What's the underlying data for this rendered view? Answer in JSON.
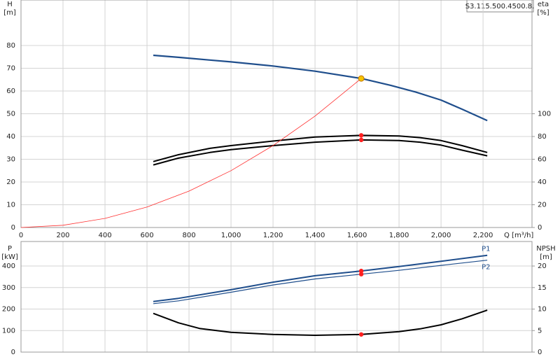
{
  "chart_data": [
    {
      "type": "line",
      "title": "S3.115.500.4500.8.",
      "ylabel": "H",
      "yunit": "[m]",
      "y2label": "eta",
      "y2unit": "[%]",
      "xlabel": "Q [m³/h]",
      "xlim": [
        0,
        2433
      ],
      "xticks": [
        0,
        200,
        400,
        600,
        800,
        {
          "value": 1000,
          "label": "1,000"
        },
        {
          "value": 1200,
          "label": "1,200"
        },
        {
          "value": 1400,
          "label": "1,400"
        },
        {
          "value": 1600,
          "label": "1,600"
        },
        {
          "value": 1800,
          "label": "1,800"
        },
        {
          "value": 2000,
          "label": "2,000"
        },
        {
          "value": 2200,
          "label": "2,200"
        }
      ],
      "ylim": [
        0,
        100
      ],
      "yticks": [
        0,
        10,
        20,
        30,
        40,
        50,
        60,
        70,
        80
      ],
      "y2lim": [
        0,
        200
      ],
      "y2ticks": [
        0,
        20,
        40,
        60,
        80,
        100
      ],
      "grid": true,
      "series": [
        {
          "color": "#1f4e8c",
          "width": 2.2,
          "x": [
            630,
            750,
            900,
            1000,
            1200,
            1400,
            1620,
            1760,
            1880,
            2000,
            2100,
            2220
          ],
          "values": [
            75.7,
            74.8,
            73.6,
            72.8,
            71,
            68.7,
            65.5,
            62.5,
            59.5,
            56,
            52,
            47
          ]
        },
        {
          "color": "#000000",
          "width": 2,
          "axis": "y2",
          "x": [
            630,
            750,
            900,
            1000,
            1200,
            1400,
            1620,
            1800,
            1900,
            2000,
            2100,
            2220
          ],
          "values": [
            58,
            64,
            69.6,
            72,
            76,
            79.6,
            81,
            80.4,
            79,
            76.4,
            72,
            66
          ]
        },
        {
          "color": "#000000",
          "width": 2,
          "axis": "y2",
          "x": [
            630,
            750,
            900,
            1000,
            1200,
            1400,
            1620,
            1800,
            1900,
            2000,
            2100,
            2220
          ],
          "values": [
            55,
            61,
            66,
            68.4,
            72,
            75,
            77,
            76.4,
            75,
            72.4,
            68,
            63
          ]
        },
        {
          "color": "#ff3030",
          "width": 0.8,
          "x": [
            0,
            200,
            400,
            600,
            800,
            1000,
            1200,
            1400,
            1620
          ],
          "values": [
            0,
            1,
            4,
            9,
            16,
            25,
            36,
            49,
            65.5
          ]
        }
      ],
      "markers": [
        {
          "x": 1620,
          "y": 65.5,
          "color": "#f5c400"
        },
        {
          "x": 1620,
          "y": 81,
          "axis": "y2",
          "color": "#ff2020"
        },
        {
          "x": 1620,
          "y": 77,
          "axis": "y2",
          "color": "#ff2020"
        }
      ]
    },
    {
      "type": "line",
      "ylabel": "P",
      "yunit": "[kW]",
      "y2label": "NPSH",
      "y2unit": "[m]",
      "ylim": [
        0,
        514
      ],
      "yticks": [
        0,
        100,
        200,
        300,
        400
      ],
      "y2lim": [
        0,
        25.7
      ],
      "y2ticks": [
        0,
        5,
        10,
        15,
        20
      ],
      "grid": true,
      "series": [
        {
          "name": "P1",
          "color": "#1f4e8c",
          "width": 2,
          "x": [
            630,
            750,
            1000,
            1200,
            1400,
            1620,
            1800,
            2000,
            2220
          ],
          "values": [
            235,
            250,
            290,
            325,
            355,
            377,
            398,
            422,
            450
          ]
        },
        {
          "name": "P2",
          "color": "#1f4e8c",
          "width": 1.2,
          "x": [
            630,
            750,
            1000,
            1200,
            1400,
            1620,
            1800,
            2000,
            2220
          ],
          "values": [
            225,
            238,
            278,
            312,
            340,
            362,
            380,
            403,
            427
          ]
        },
        {
          "color": "#000000",
          "width": 2,
          "axis": "y2",
          "x": [
            630,
            750,
            850,
            1000,
            1200,
            1400,
            1620,
            1800,
            1900,
            2000,
            2100,
            2220
          ],
          "values": [
            9,
            6.8,
            5.5,
            4.6,
            4.1,
            3.9,
            4.1,
            4.75,
            5.4,
            6.35,
            7.75,
            9.75
          ]
        }
      ],
      "markers": [
        {
          "x": 1620,
          "y": 377,
          "color": "#ff2020"
        },
        {
          "x": 1620,
          "y": 362,
          "color": "#ff2020"
        },
        {
          "x": 1620,
          "y": 4.1,
          "axis": "y2",
          "color": "#ff2020"
        }
      ]
    }
  ]
}
